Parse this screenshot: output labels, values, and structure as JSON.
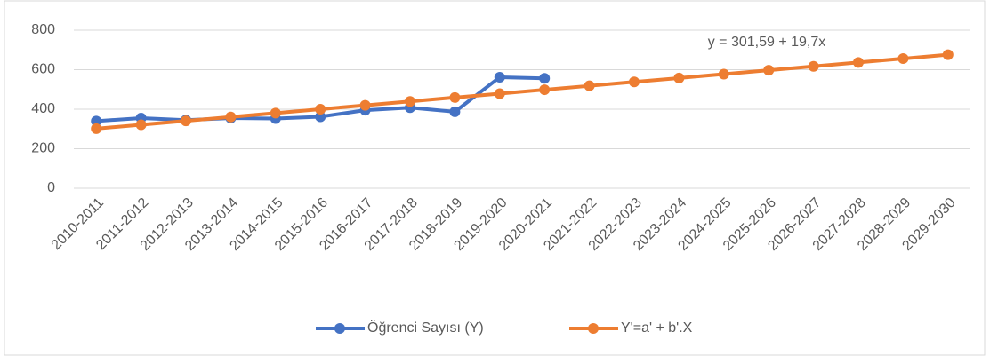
{
  "chart_data": {
    "type": "line",
    "categories": [
      "2010-2011",
      "2011-2012",
      "2012-2013",
      "2013-2014",
      "2014-2015",
      "2015-2016",
      "2016-2017",
      "2017-2018",
      "2018-2019",
      "2019-2020",
      "2020-2021",
      "2021-2022",
      "2022-2023",
      "2023-2024",
      "2024-2025",
      "2025-2026",
      "2026-2027",
      "2027-2028",
      "2028-2029",
      "2029-2030"
    ],
    "series": [
      {
        "name": "Öğrenci Sayısı (Y)",
        "color": "#4472c4",
        "values": [
          340,
          355,
          345,
          355,
          353,
          362,
          395,
          408,
          387,
          562,
          556,
          null,
          null,
          null,
          null,
          null,
          null,
          null,
          null,
          null
        ]
      },
      {
        "name": "Y'=a' + b'.X",
        "color": "#ed7d31",
        "values": [
          301.59,
          321.29,
          340.99,
          360.69,
          380.39,
          400.09,
          419.79,
          439.49,
          459.19,
          478.89,
          498.59,
          518.29,
          537.99,
          557.69,
          577.39,
          597.09,
          616.79,
          636.49,
          656.19,
          675.89
        ]
      }
    ],
    "annotation": "y = 301,59 + 19,7x",
    "ylim": [
      0,
      800
    ],
    "yticks": [
      0,
      200,
      400,
      600,
      800
    ],
    "grid": true,
    "legend": "bottom"
  }
}
